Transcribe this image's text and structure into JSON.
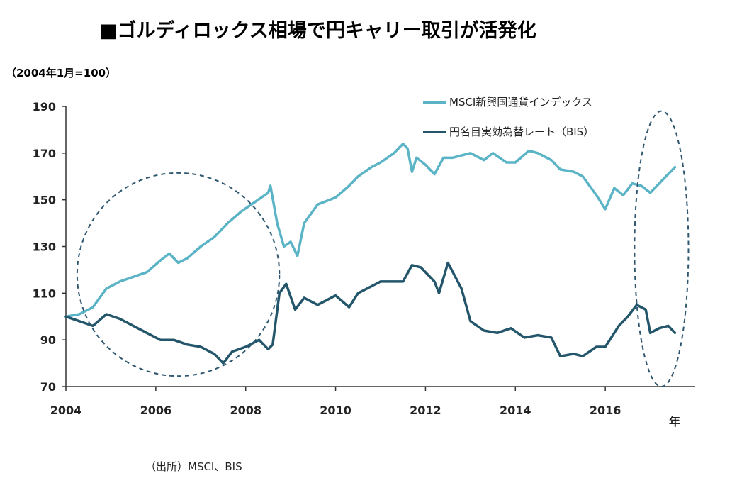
{
  "chart_data": {
    "type": "line",
    "title": "■ゴルディロックス相場で円キャリー取引が活発化",
    "unit_label": "（2004年1月=100）",
    "xlabel": "年",
    "source": "（出所）MSCI、BIS",
    "xlim": [
      2004,
      2018
    ],
    "ylim": [
      70,
      190
    ],
    "xticks": [
      2004,
      2006,
      2008,
      2010,
      2012,
      2014,
      2016
    ],
    "yticks": [
      70,
      90,
      110,
      130,
      150,
      170,
      190
    ],
    "legend_position": "top-right",
    "series": [
      {
        "name": "MSCI新興国通貨インデックス",
        "color": "#5ab4c6",
        "x": [
          2004.0,
          2004.3,
          2004.6,
          2004.9,
          2005.2,
          2005.5,
          2005.8,
          2006.1,
          2006.3,
          2006.5,
          2006.7,
          2007.0,
          2007.3,
          2007.6,
          2007.9,
          2008.2,
          2008.5,
          2008.55,
          2008.7,
          2008.85,
          2009.0,
          2009.15,
          2009.3,
          2009.6,
          2010.0,
          2010.3,
          2010.5,
          2010.8,
          2011.0,
          2011.3,
          2011.5,
          2011.6,
          2011.7,
          2011.8,
          2012.0,
          2012.2,
          2012.4,
          2012.6,
          2013.0,
          2013.3,
          2013.5,
          2013.8,
          2014.0,
          2014.3,
          2014.5,
          2014.8,
          2015.0,
          2015.3,
          2015.5,
          2015.8,
          2016.0,
          2016.2,
          2016.4,
          2016.6,
          2016.8,
          2017.0,
          2017.3,
          2017.55
        ],
        "values": [
          100,
          101,
          104,
          112,
          115,
          117,
          119,
          124,
          127,
          123,
          125,
          130,
          134,
          140,
          145,
          149,
          153,
          156,
          140,
          130,
          132,
          126,
          140,
          148,
          151,
          156,
          160,
          164,
          166,
          170,
          174,
          172,
          162,
          168,
          165,
          161,
          168,
          168,
          170,
          167,
          170,
          166,
          166,
          171,
          170,
          167,
          163,
          162,
          160,
          152,
          146,
          155,
          152,
          157,
          156,
          153,
          159,
          164
        ]
      },
      {
        "name": "円名目実効為替レート（BIS）",
        "color": "#23566a",
        "x": [
          2004.0,
          2004.3,
          2004.6,
          2004.9,
          2005.2,
          2005.5,
          2005.8,
          2006.1,
          2006.4,
          2006.7,
          2007.0,
          2007.3,
          2007.5,
          2007.7,
          2008.0,
          2008.3,
          2008.5,
          2008.6,
          2008.75,
          2008.9,
          2009.1,
          2009.3,
          2009.6,
          2010.0,
          2010.3,
          2010.5,
          2010.8,
          2011.0,
          2011.3,
          2011.5,
          2011.7,
          2011.9,
          2012.2,
          2012.3,
          2012.5,
          2012.8,
          2013.0,
          2013.3,
          2013.6,
          2013.9,
          2014.2,
          2014.5,
          2014.8,
          2015.0,
          2015.3,
          2015.5,
          2015.8,
          2016.0,
          2016.3,
          2016.5,
          2016.7,
          2016.9,
          2017.0,
          2017.2,
          2017.4,
          2017.55
        ],
        "values": [
          100,
          98,
          96,
          101,
          99,
          96,
          93,
          90,
          90,
          88,
          87,
          84,
          80,
          85,
          87,
          90,
          86,
          88,
          110,
          114,
          103,
          108,
          105,
          109,
          104,
          110,
          113,
          115,
          115,
          115,
          122,
          121,
          115,
          110,
          123,
          112,
          98,
          94,
          93,
          95,
          91,
          92,
          91,
          83,
          84,
          83,
          87,
          87,
          96,
          100,
          105,
          103,
          93,
          95,
          96,
          93
        ]
      }
    ]
  }
}
